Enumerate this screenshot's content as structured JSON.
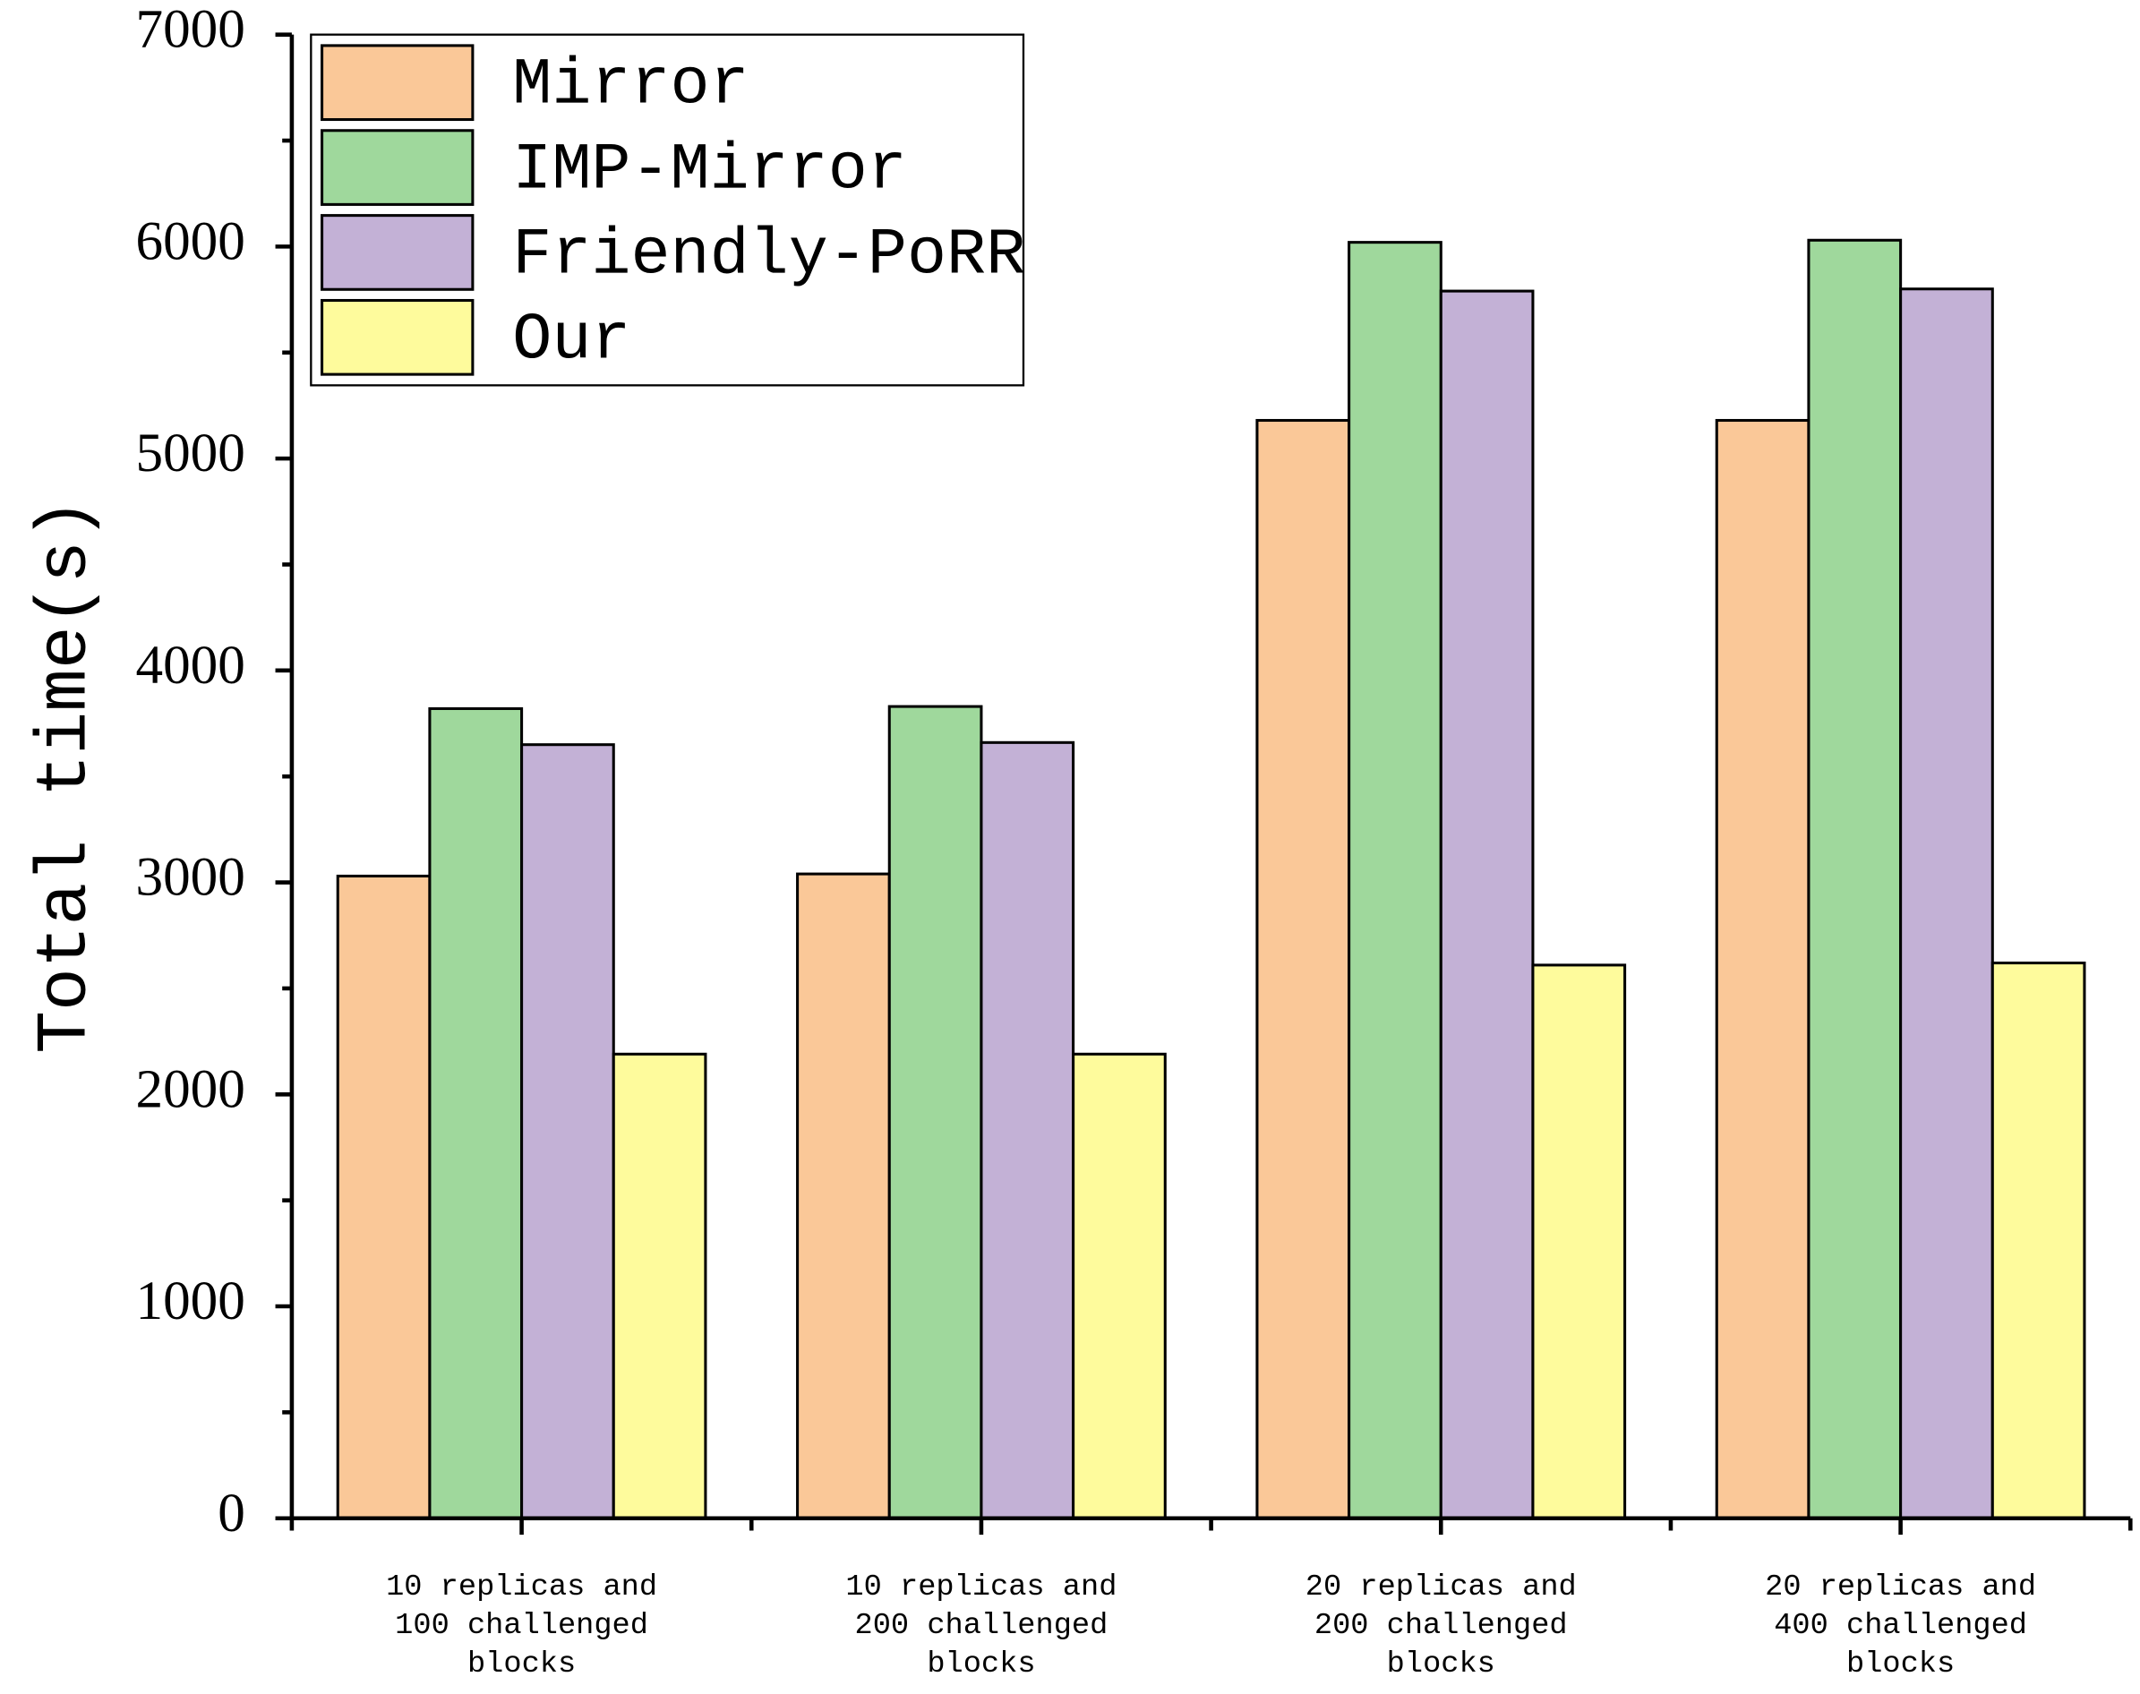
{
  "chart_data": {
    "type": "bar",
    "y_label": "Total time(s)",
    "categories": [
      "10 replicas and\n100 challenged\nblocks",
      "10 replicas and\n200 challenged\nblocks",
      "20 replicas and\n200 challenged\nblocks",
      "20 replicas and\n400 challenged\nblocks"
    ],
    "series": [
      {
        "name": "Mirror",
        "color": "#fac898",
        "values": [
          3030,
          3040,
          5180,
          5180
        ]
      },
      {
        "name": "IMP-Mirror",
        "color": "#9fd89c",
        "values": [
          3820,
          3830,
          6020,
          6030
        ]
      },
      {
        "name": "Friendly-PoRR",
        "color": "#c3b1d6",
        "values": [
          3650,
          3660,
          5790,
          5800
        ]
      },
      {
        "name": "Our",
        "color": "#fefb9c",
        "values": [
          2190,
          2190,
          2610,
          2620
        ]
      }
    ],
    "ylim": [
      0,
      7000
    ],
    "yticks": [
      0,
      1000,
      2000,
      3000,
      4000,
      5000,
      6000,
      7000
    ],
    "yminorticks": [
      500,
      1500,
      2500,
      3500,
      4500,
      5500,
      6500
    ],
    "legend": "top-left"
  }
}
